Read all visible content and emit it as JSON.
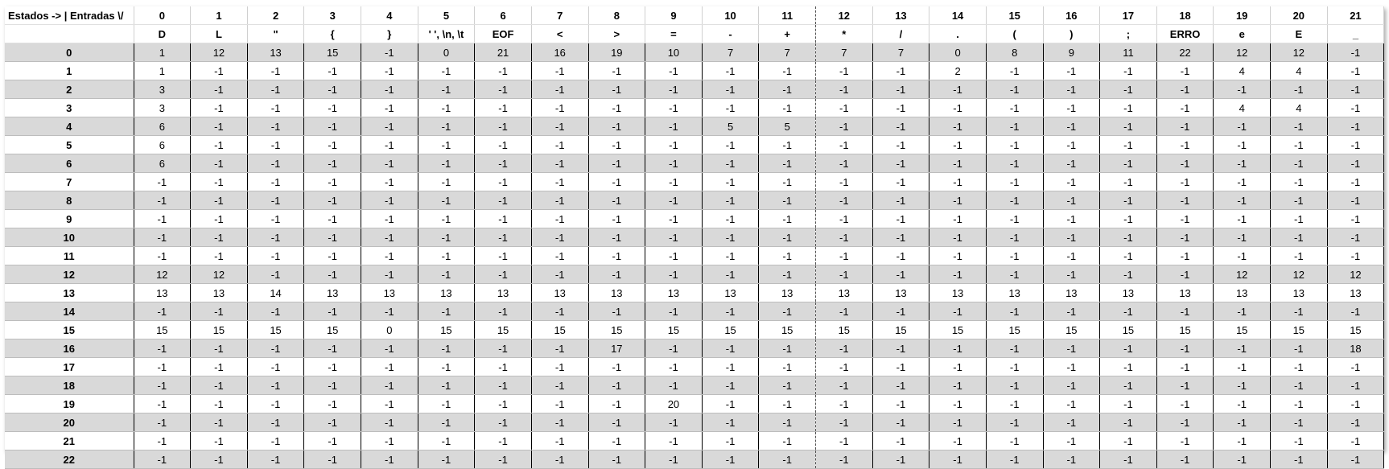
{
  "table": {
    "corner_label": "Estados -> | Entradas \\/",
    "column_indices": [
      "0",
      "1",
      "2",
      "3",
      "4",
      "5",
      "6",
      "7",
      "8",
      "9",
      "10",
      "11",
      "12",
      "13",
      "14",
      "15",
      "16",
      "17",
      "18",
      "19",
      "20",
      "21"
    ],
    "column_chars": [
      "D",
      "L",
      "\"",
      "{",
      "}",
      "' ', \\n, \\t",
      "EOF",
      "<",
      ">",
      "=",
      "-",
      "+",
      "*",
      "/",
      ".",
      "(",
      ")",
      ";",
      "ERRO",
      "e",
      "E",
      "_"
    ],
    "rows": [
      {
        "state": "0",
        "cells": [
          "1",
          "12",
          "13",
          "15",
          "-1",
          "0",
          "21",
          "16",
          "19",
          "10",
          "7",
          "7",
          "7",
          "7",
          "0",
          "8",
          "9",
          "11",
          "22",
          "12",
          "12",
          "-1"
        ]
      },
      {
        "state": "1",
        "cells": [
          "1",
          "-1",
          "-1",
          "-1",
          "-1",
          "-1",
          "-1",
          "-1",
          "-1",
          "-1",
          "-1",
          "-1",
          "-1",
          "-1",
          "2",
          "-1",
          "-1",
          "-1",
          "-1",
          "4",
          "4",
          "-1"
        ]
      },
      {
        "state": "2",
        "cells": [
          "3",
          "-1",
          "-1",
          "-1",
          "-1",
          "-1",
          "-1",
          "-1",
          "-1",
          "-1",
          "-1",
          "-1",
          "-1",
          "-1",
          "-1",
          "-1",
          "-1",
          "-1",
          "-1",
          "-1",
          "-1",
          "-1"
        ]
      },
      {
        "state": "3",
        "cells": [
          "3",
          "-1",
          "-1",
          "-1",
          "-1",
          "-1",
          "-1",
          "-1",
          "-1",
          "-1",
          "-1",
          "-1",
          "-1",
          "-1",
          "-1",
          "-1",
          "-1",
          "-1",
          "-1",
          "4",
          "4",
          "-1"
        ]
      },
      {
        "state": "4",
        "cells": [
          "6",
          "-1",
          "-1",
          "-1",
          "-1",
          "-1",
          "-1",
          "-1",
          "-1",
          "-1",
          "5",
          "5",
          "-1",
          "-1",
          "-1",
          "-1",
          "-1",
          "-1",
          "-1",
          "-1",
          "-1",
          "-1"
        ]
      },
      {
        "state": "5",
        "cells": [
          "6",
          "-1",
          "-1",
          "-1",
          "-1",
          "-1",
          "-1",
          "-1",
          "-1",
          "-1",
          "-1",
          "-1",
          "-1",
          "-1",
          "-1",
          "-1",
          "-1",
          "-1",
          "-1",
          "-1",
          "-1",
          "-1"
        ]
      },
      {
        "state": "6",
        "cells": [
          "6",
          "-1",
          "-1",
          "-1",
          "-1",
          "-1",
          "-1",
          "-1",
          "-1",
          "-1",
          "-1",
          "-1",
          "-1",
          "-1",
          "-1",
          "-1",
          "-1",
          "-1",
          "-1",
          "-1",
          "-1",
          "-1"
        ]
      },
      {
        "state": "7",
        "cells": [
          "-1",
          "-1",
          "-1",
          "-1",
          "-1",
          "-1",
          "-1",
          "-1",
          "-1",
          "-1",
          "-1",
          "-1",
          "-1",
          "-1",
          "-1",
          "-1",
          "-1",
          "-1",
          "-1",
          "-1",
          "-1",
          "-1"
        ]
      },
      {
        "state": "8",
        "cells": [
          "-1",
          "-1",
          "-1",
          "-1",
          "-1",
          "-1",
          "-1",
          "-1",
          "-1",
          "-1",
          "-1",
          "-1",
          "-1",
          "-1",
          "-1",
          "-1",
          "-1",
          "-1",
          "-1",
          "-1",
          "-1",
          "-1"
        ]
      },
      {
        "state": "9",
        "cells": [
          "-1",
          "-1",
          "-1",
          "-1",
          "-1",
          "-1",
          "-1",
          "-1",
          "-1",
          "-1",
          "-1",
          "-1",
          "-1",
          "-1",
          "-1",
          "-1",
          "-1",
          "-1",
          "-1",
          "-1",
          "-1",
          "-1"
        ]
      },
      {
        "state": "10",
        "cells": [
          "-1",
          "-1",
          "-1",
          "-1",
          "-1",
          "-1",
          "-1",
          "-1",
          "-1",
          "-1",
          "-1",
          "-1",
          "-1",
          "-1",
          "-1",
          "-1",
          "-1",
          "-1",
          "-1",
          "-1",
          "-1",
          "-1"
        ]
      },
      {
        "state": "11",
        "cells": [
          "-1",
          "-1",
          "-1",
          "-1",
          "-1",
          "-1",
          "-1",
          "-1",
          "-1",
          "-1",
          "-1",
          "-1",
          "-1",
          "-1",
          "-1",
          "-1",
          "-1",
          "-1",
          "-1",
          "-1",
          "-1",
          "-1"
        ]
      },
      {
        "state": "12",
        "cells": [
          "12",
          "12",
          "-1",
          "-1",
          "-1",
          "-1",
          "-1",
          "-1",
          "-1",
          "-1",
          "-1",
          "-1",
          "-1",
          "-1",
          "-1",
          "-1",
          "-1",
          "-1",
          "-1",
          "12",
          "12",
          "12"
        ]
      },
      {
        "state": "13",
        "cells": [
          "13",
          "13",
          "14",
          "13",
          "13",
          "13",
          "13",
          "13",
          "13",
          "13",
          "13",
          "13",
          "13",
          "13",
          "13",
          "13",
          "13",
          "13",
          "13",
          "13",
          "13",
          "13"
        ]
      },
      {
        "state": "14",
        "cells": [
          "-1",
          "-1",
          "-1",
          "-1",
          "-1",
          "-1",
          "-1",
          "-1",
          "-1",
          "-1",
          "-1",
          "-1",
          "-1",
          "-1",
          "-1",
          "-1",
          "-1",
          "-1",
          "-1",
          "-1",
          "-1",
          "-1"
        ]
      },
      {
        "state": "15",
        "cells": [
          "15",
          "15",
          "15",
          "15",
          "0",
          "15",
          "15",
          "15",
          "15",
          "15",
          "15",
          "15",
          "15",
          "15",
          "15",
          "15",
          "15",
          "15",
          "15",
          "15",
          "15",
          "15"
        ]
      },
      {
        "state": "16",
        "cells": [
          "-1",
          "-1",
          "-1",
          "-1",
          "-1",
          "-1",
          "-1",
          "-1",
          "17",
          "-1",
          "-1",
          "-1",
          "-1",
          "-1",
          "-1",
          "-1",
          "-1",
          "-1",
          "-1",
          "-1",
          "-1",
          "18"
        ]
      },
      {
        "state": "17",
        "cells": [
          "-1",
          "-1",
          "-1",
          "-1",
          "-1",
          "-1",
          "-1",
          "-1",
          "-1",
          "-1",
          "-1",
          "-1",
          "-1",
          "-1",
          "-1",
          "-1",
          "-1",
          "-1",
          "-1",
          "-1",
          "-1",
          "-1"
        ]
      },
      {
        "state": "18",
        "cells": [
          "-1",
          "-1",
          "-1",
          "-1",
          "-1",
          "-1",
          "-1",
          "-1",
          "-1",
          "-1",
          "-1",
          "-1",
          "-1",
          "-1",
          "-1",
          "-1",
          "-1",
          "-1",
          "-1",
          "-1",
          "-1",
          "-1"
        ]
      },
      {
        "state": "19",
        "cells": [
          "-1",
          "-1",
          "-1",
          "-1",
          "-1",
          "-1",
          "-1",
          "-1",
          "-1",
          "20",
          "-1",
          "-1",
          "-1",
          "-1",
          "-1",
          "-1",
          "-1",
          "-1",
          "-1",
          "-1",
          "-1",
          "-1"
        ]
      },
      {
        "state": "20",
        "cells": [
          "-1",
          "-1",
          "-1",
          "-1",
          "-1",
          "-1",
          "-1",
          "-1",
          "-1",
          "-1",
          "-1",
          "-1",
          "-1",
          "-1",
          "-1",
          "-1",
          "-1",
          "-1",
          "-1",
          "-1",
          "-1",
          "-1"
        ]
      },
      {
        "state": "21",
        "cells": [
          "-1",
          "-1",
          "-1",
          "-1",
          "-1",
          "-1",
          "-1",
          "-1",
          "-1",
          "-1",
          "-1",
          "-1",
          "-1",
          "-1",
          "-1",
          "-1",
          "-1",
          "-1",
          "-1",
          "-1",
          "-1",
          "-1"
        ]
      },
      {
        "state": "22",
        "cells": [
          "-1",
          "-1",
          "-1",
          "-1",
          "-1",
          "-1",
          "-1",
          "-1",
          "-1",
          "-1",
          "-1",
          "-1",
          "-1",
          "-1",
          "-1",
          "-1",
          "-1",
          "-1",
          "-1",
          "-1",
          "-1",
          "-1"
        ]
      }
    ]
  }
}
